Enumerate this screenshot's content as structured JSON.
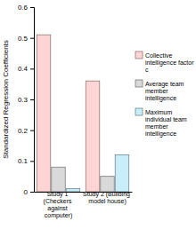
{
  "chart_data": {
    "type": "bar",
    "categories": [
      "Study 1 (Checkers against computer)",
      "Study 2 (Building model house)"
    ],
    "series": [
      {
        "name": "Collective intelligence factor c",
        "color": "#ffd4d4",
        "values": [
          0.51,
          0.36
        ]
      },
      {
        "name": "Average team member intelligence",
        "color": "#d9d9d9",
        "values": [
          0.08,
          0.05
        ]
      },
      {
        "name": "Maximum individual team member intelligence",
        "color": "#c8eefa",
        "values": [
          0.01,
          0.12
        ]
      }
    ],
    "y_label": "Standardized Regression Coefficients",
    "ylim": [
      0,
      0.6
    ],
    "yticks": [
      0,
      0.1,
      0.2,
      0.3,
      0.4,
      0.5,
      0.6
    ],
    "grid": false,
    "legend": "right"
  }
}
